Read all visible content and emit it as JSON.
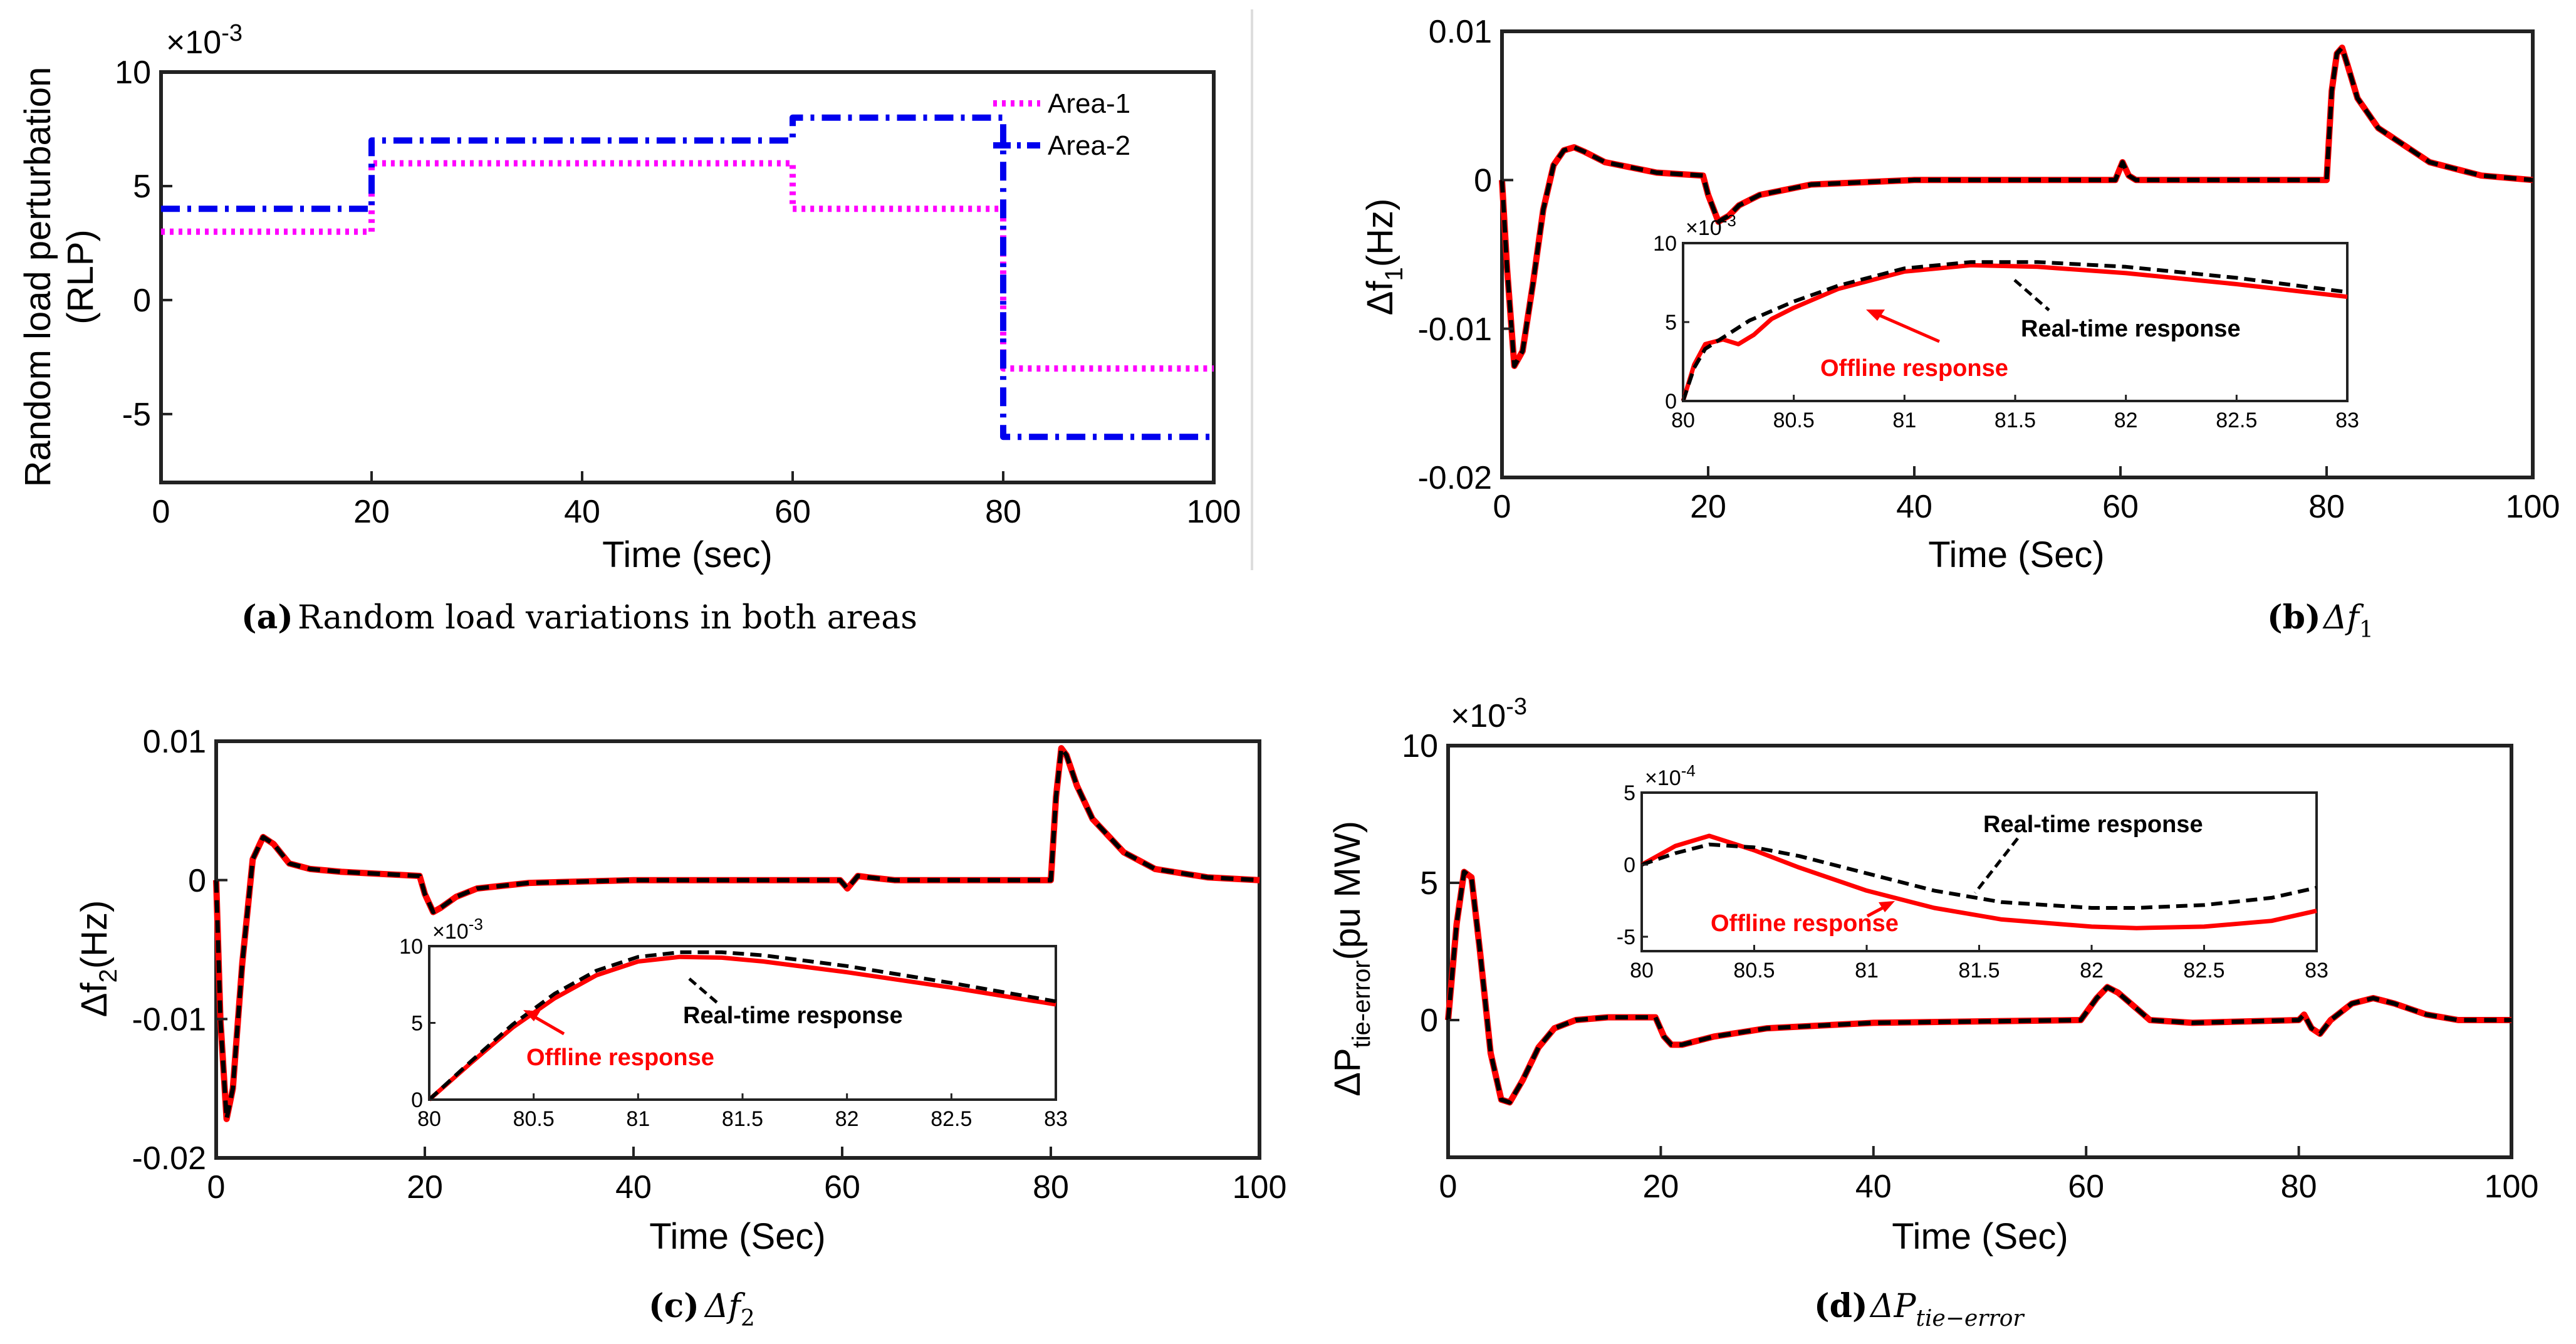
{
  "colors": {
    "area1": "#ff00ff",
    "area2": "#0000ee",
    "offline": "#ff0000",
    "realtime": "#000000"
  },
  "chart_data": [
    {
      "id": "a",
      "type": "line",
      "caption_label": "(a)",
      "caption_text": "Random load variations in both areas",
      "xlabel": "Time (sec)",
      "ylabel_line1": "Random load perturbation",
      "ylabel_line2": "(RLP)",
      "exponent": "×10",
      "exponent_power": "-3",
      "xlim": [
        0,
        100
      ],
      "ylim": [
        -8,
        10
      ],
      "xticks": [
        "0",
        "20",
        "40",
        "60",
        "80",
        "100"
      ],
      "yticks": [
        "10",
        "5",
        "0",
        "-5"
      ],
      "legend_position": "top-right",
      "series": [
        {
          "name": "Area-1",
          "style": "dotted",
          "x": [
            0,
            20,
            20,
            60,
            60,
            80,
            80,
            100
          ],
          "values": [
            3,
            3,
            6,
            6,
            4,
            4,
            -3,
            -3
          ]
        },
        {
          "name": "Area-2",
          "style": "dashdot",
          "x": [
            0,
            20,
            20,
            60,
            60,
            80,
            80,
            100
          ],
          "values": [
            4,
            4,
            7,
            7,
            8,
            8,
            -6,
            -6
          ]
        }
      ]
    },
    {
      "id": "b",
      "type": "line",
      "caption_label": "(b)",
      "caption_text": "Δf",
      "caption_sub": "1",
      "xlabel": "Time (Sec)",
      "ylabel": "Δf",
      "ylabel_sub": "1",
      "ylabel_unit": "(Hz)",
      "xlim": [
        0,
        100
      ],
      "ylim": [
        -0.02,
        0.01
      ],
      "xticks": [
        "0",
        "20",
        "40",
        "60",
        "80",
        "100"
      ],
      "yticks": [
        "0.01",
        "0",
        "-0.01",
        "-0.02"
      ],
      "series": [
        {
          "name": "Offline response",
          "x": [
            0,
            0.5,
            1.2,
            2,
            3,
            4,
            5,
            6,
            7,
            8,
            10,
            15,
            19.5,
            20,
            21,
            22,
            23,
            25,
            30,
            40,
            50,
            59.5,
            60.2,
            60.8,
            61.5,
            65,
            70,
            80,
            80.5,
            81,
            81.5,
            82,
            83,
            85,
            90,
            95,
            100
          ],
          "values": [
            0,
            -0.006,
            -0.0125,
            -0.0115,
            -0.007,
            -0.002,
            0.001,
            0.002,
            0.0022,
            0.0019,
            0.0012,
            0.0005,
            0.0003,
            -0.001,
            -0.0028,
            -0.0024,
            -0.0017,
            -0.001,
            -0.0003,
            0,
            0,
            0,
            0.0012,
            0.0003,
            0,
            0,
            0,
            0,
            0.006,
            0.0085,
            0.0089,
            0.0078,
            0.0055,
            0.0035,
            0.0012,
            0.0003,
            0
          ]
        },
        {
          "name": "Real-time response",
          "x": [
            0,
            0.5,
            1.2,
            2,
            3,
            4,
            5,
            6,
            7,
            8,
            10,
            15,
            19.5,
            20,
            21,
            22,
            23,
            25,
            30,
            40,
            50,
            59.5,
            60.2,
            60.8,
            61.5,
            65,
            70,
            80,
            80.5,
            81,
            81.5,
            82,
            83,
            85,
            90,
            95,
            100
          ],
          "values": [
            0,
            -0.006,
            -0.0125,
            -0.0115,
            -0.007,
            -0.002,
            0.001,
            0.002,
            0.0022,
            0.0019,
            0.0012,
            0.0005,
            0.0003,
            -0.001,
            -0.0028,
            -0.0024,
            -0.0017,
            -0.001,
            -0.0003,
            0,
            0,
            0,
            0.0012,
            0.0003,
            0,
            0,
            0,
            0,
            0.006,
            0.0085,
            0.0089,
            0.0078,
            0.0055,
            0.0035,
            0.0012,
            0.0003,
            0
          ]
        }
      ],
      "inset": {
        "exponent": "×10",
        "exponent_power": "-3",
        "xlim": [
          80,
          83
        ],
        "ylim": [
          0,
          10
        ],
        "xticks": [
          "80",
          "80.5",
          "81",
          "81.5",
          "82",
          "82.5",
          "83"
        ],
        "yticks": [
          "10",
          "5",
          "0"
        ],
        "annotation_realtime": "Real-time response",
        "annotation_offline": "Offline response",
        "series": [
          {
            "name": "Offline response",
            "x": [
              80,
              80.05,
              80.1,
              80.18,
              80.25,
              80.32,
              80.4,
              80.5,
              80.7,
              81,
              81.3,
              81.6,
              82,
              82.5,
              83
            ],
            "values": [
              0,
              2.3,
              3.6,
              3.9,
              3.6,
              4.2,
              5.2,
              5.9,
              7.1,
              8.2,
              8.6,
              8.5,
              8.1,
              7.4,
              6.6
            ]
          },
          {
            "name": "Real-time response",
            "x": [
              80,
              80.05,
              80.1,
              80.2,
              80.3,
              80.5,
              80.7,
              81,
              81.3,
              81.6,
              82,
              82.5,
              83
            ],
            "values": [
              0,
              2.1,
              3.3,
              4.2,
              5.1,
              6.3,
              7.3,
              8.4,
              8.8,
              8.8,
              8.5,
              7.8,
              6.9
            ]
          }
        ]
      }
    },
    {
      "id": "c",
      "type": "line",
      "caption_label": "(c)",
      "caption_text": "Δf",
      "caption_sub": "2",
      "xlabel": "Time (Sec)",
      "ylabel": "Δf",
      "ylabel_sub": "2",
      "ylabel_unit": "(Hz)",
      "xlim": [
        0,
        100
      ],
      "ylim": [
        -0.02,
        0.01
      ],
      "xticks": [
        "0",
        "20",
        "40",
        "60",
        "80",
        "100"
      ],
      "yticks": [
        "0.01",
        "0",
        "-0.01",
        "-0.02"
      ],
      "series": [
        {
          "name": "Offline response",
          "x": [
            0,
            0.4,
            1,
            1.6,
            2.5,
            3.5,
            4.5,
            5.5,
            7,
            9,
            12,
            19.5,
            20,
            20.8,
            21.5,
            23,
            25,
            30,
            40,
            59.8,
            60.5,
            61.5,
            62.5,
            65,
            70,
            80,
            80.5,
            81,
            81.5,
            82.5,
            84,
            87,
            90,
            95,
            100
          ],
          "values": [
            0,
            -0.01,
            -0.0172,
            -0.015,
            -0.006,
            0.0015,
            0.0031,
            0.0026,
            0.0012,
            0.0008,
            0.0006,
            0.0003,
            -0.001,
            -0.0023,
            -0.002,
            -0.0012,
            -0.0006,
            -0.0002,
            0,
            0,
            -0.0006,
            0.0003,
            0.0002,
            0,
            0,
            0,
            0.006,
            0.0095,
            0.009,
            0.0068,
            0.0044,
            0.002,
            0.0008,
            0.0002,
            0
          ]
        },
        {
          "name": "Real-time response",
          "x": [
            0,
            0.4,
            1,
            1.6,
            2.5,
            3.5,
            4.5,
            5.5,
            7,
            9,
            12,
            19.5,
            20,
            20.8,
            21.5,
            23,
            25,
            30,
            40,
            59.8,
            60.5,
            61.5,
            62.5,
            65,
            70,
            80,
            80.5,
            81,
            81.5,
            82.5,
            84,
            87,
            90,
            95,
            100
          ],
          "values": [
            0,
            -0.01,
            -0.0172,
            -0.015,
            -0.006,
            0.0015,
            0.0031,
            0.0026,
            0.0012,
            0.0008,
            0.0006,
            0.0003,
            -0.001,
            -0.0023,
            -0.002,
            -0.0012,
            -0.0006,
            -0.0002,
            0,
            0,
            -0.0006,
            0.0003,
            0.0002,
            0,
            0,
            0,
            0.006,
            0.0095,
            0.009,
            0.0068,
            0.0044,
            0.002,
            0.0008,
            0.0002,
            0
          ]
        }
      ],
      "inset": {
        "exponent": "×10",
        "exponent_power": "-3",
        "xlim": [
          80,
          83
        ],
        "ylim": [
          0,
          10
        ],
        "xticks": [
          "80",
          "80.5",
          "81",
          "81.5",
          "82",
          "82.5",
          "83"
        ],
        "yticks": [
          "10",
          "5",
          "0"
        ],
        "annotation_realtime": "Real-time response",
        "annotation_offline": "Offline response",
        "series": [
          {
            "name": "Offline response",
            "x": [
              80,
              80.2,
              80.4,
              80.6,
              80.8,
              81,
              81.2,
              81.4,
              81.6,
              82,
              82.5,
              83
            ],
            "values": [
              0,
              2.4,
              4.7,
              6.6,
              8.1,
              9.0,
              9.3,
              9.25,
              9.0,
              8.3,
              7.3,
              6.2
            ]
          },
          {
            "name": "Real-time response",
            "x": [
              80,
              80.2,
              80.4,
              80.6,
              80.8,
              81,
              81.2,
              81.4,
              81.6,
              82,
              82.5,
              83
            ],
            "values": [
              0,
              2.5,
              4.9,
              6.9,
              8.4,
              9.3,
              9.6,
              9.6,
              9.4,
              8.7,
              7.6,
              6.4
            ]
          }
        ]
      }
    },
    {
      "id": "d",
      "type": "line",
      "caption_label": "(d)",
      "caption_text": "ΔP",
      "caption_sub": "tie−error",
      "xlabel": "Time (Sec)",
      "ylabel": "ΔP",
      "ylabel_sub": "tie-error",
      "ylabel_unit": "(pu MW)",
      "exponent": "×10",
      "exponent_power": "-3",
      "xlim": [
        0,
        100
      ],
      "ylim": [
        -5,
        10
      ],
      "xticks": [
        "0",
        "20",
        "40",
        "60",
        "80",
        "100"
      ],
      "yticks": [
        "10",
        "5",
        "0"
      ],
      "series": [
        {
          "name": "Offline response",
          "x": [
            0,
            0.8,
            1.5,
            2.2,
            3,
            4,
            5,
            5.8,
            7,
            8.5,
            10,
            12,
            15,
            19.5,
            20.3,
            21,
            22,
            25,
            30,
            40,
            59.5,
            61,
            62,
            63,
            64.5,
            66,
            70,
            80,
            80.5,
            81.2,
            82,
            83,
            85,
            87,
            89,
            92,
            95,
            100
          ],
          "values": [
            0,
            3.5,
            5.4,
            5.2,
            2.5,
            -1.2,
            -2.9,
            -3.0,
            -2.2,
            -1.0,
            -0.3,
            0,
            0.1,
            0.1,
            -0.6,
            -0.9,
            -0.9,
            -0.6,
            -0.3,
            -0.1,
            0,
            0.8,
            1.2,
            1.0,
            0.5,
            0,
            -0.1,
            0,
            0.2,
            -0.3,
            -0.5,
            0,
            0.6,
            0.8,
            0.6,
            0.2,
            0,
            0
          ]
        },
        {
          "name": "Real-time response",
          "x": [
            0,
            0.8,
            1.5,
            2.2,
            3,
            4,
            5,
            5.8,
            7,
            8.5,
            10,
            12,
            15,
            19.5,
            20.3,
            21,
            22,
            25,
            30,
            40,
            59.5,
            61,
            62,
            63,
            64.5,
            66,
            70,
            80,
            80.5,
            81.2,
            82,
            83,
            85,
            87,
            89,
            92,
            95,
            100
          ],
          "values": [
            0,
            3.5,
            5.4,
            5.2,
            2.5,
            -1.2,
            -2.9,
            -3.0,
            -2.2,
            -1.0,
            -0.3,
            0,
            0.1,
            0.1,
            -0.6,
            -0.9,
            -0.9,
            -0.6,
            -0.3,
            -0.1,
            0,
            0.8,
            1.2,
            1.0,
            0.5,
            0,
            -0.1,
            0,
            0.2,
            -0.3,
            -0.5,
            0,
            0.6,
            0.8,
            0.6,
            0.2,
            0,
            0
          ]
        }
      ],
      "inset": {
        "exponent": "×10",
        "exponent_power": "-4",
        "xlim": [
          80,
          83
        ],
        "ylim": [
          -6,
          5
        ],
        "xticks": [
          "80",
          "80.5",
          "81",
          "81.5",
          "82",
          "82.5",
          "83"
        ],
        "yticks": [
          "5",
          "0",
          "-5"
        ],
        "annotation_realtime": "Real-time response",
        "annotation_offline": "Offline response",
        "series": [
          {
            "name": "Offline response",
            "x": [
              80,
              80.15,
              80.3,
              80.5,
              80.7,
              81,
              81.3,
              81.6,
              82,
              82.2,
              82.5,
              82.8,
              83
            ],
            "values": [
              0,
              1.3,
              2.0,
              1.0,
              -0.2,
              -1.8,
              -3.0,
              -3.8,
              -4.3,
              -4.4,
              -4.3,
              -3.9,
              -3.2
            ]
          },
          {
            "name": "Real-time response",
            "x": [
              80,
              80.15,
              80.3,
              80.5,
              80.7,
              81,
              81.3,
              81.6,
              82,
              82.2,
              82.5,
              82.8,
              83
            ],
            "values": [
              0,
              0.8,
              1.4,
              1.2,
              0.6,
              -0.6,
              -1.8,
              -2.6,
              -3.0,
              -3.0,
              -2.8,
              -2.3,
              -1.6
            ]
          }
        ]
      }
    }
  ]
}
